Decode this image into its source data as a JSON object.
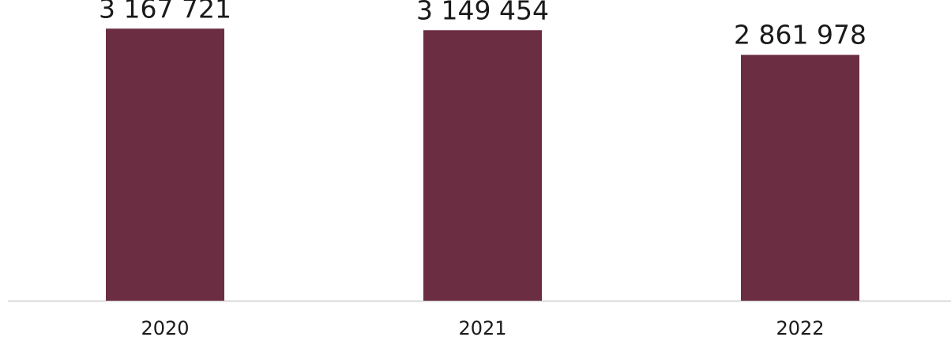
{
  "chart_data": {
    "type": "bar",
    "categories": [
      "2020",
      "2021",
      "2022"
    ],
    "values": [
      3167721,
      3149454,
      2861978
    ],
    "value_labels": [
      "3 167 721",
      "3 149 454",
      "2 861 978"
    ],
    "title": "",
    "xlabel": "",
    "ylabel": "",
    "ylim": [
      0,
      3400000
    ],
    "grid": false,
    "legend": "none",
    "bar_color": "#6b2d42",
    "axis_color": "#d9d9d9"
  }
}
